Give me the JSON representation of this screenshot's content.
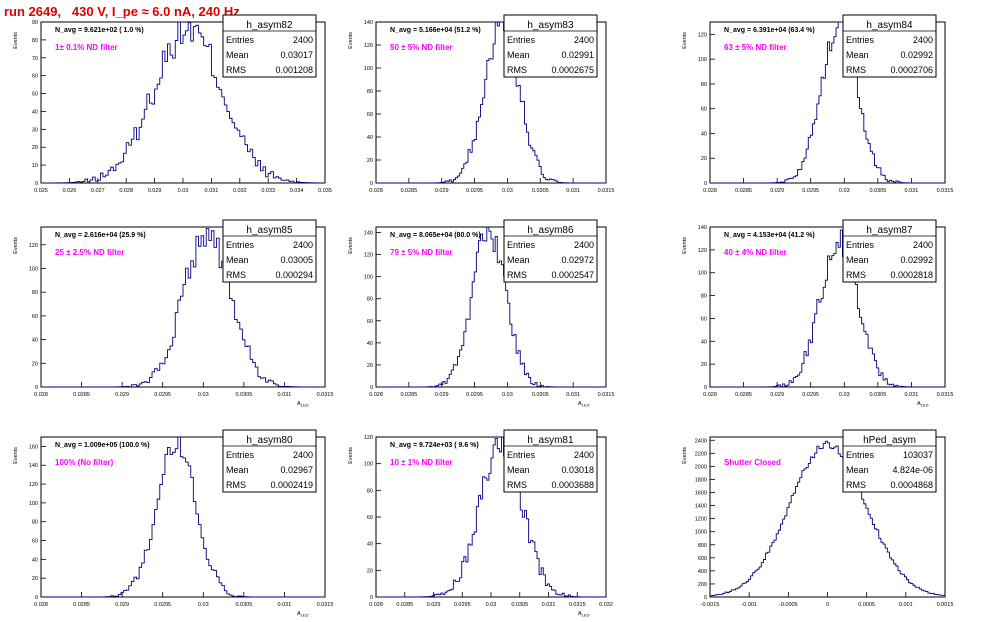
{
  "header": {
    "title": "run 2649,   430 V, I_pe ≈ 6.0 nA, 240 Hz"
  },
  "colors": {
    "hist": "#000080",
    "annot": "#ff00ff",
    "title": "#e00000",
    "frame": "#000000"
  },
  "chart_data": [
    {
      "type": "histogram",
      "name": "h_asym82",
      "stats": {
        "Entries": "2400",
        "Mean": "0.03017",
        "RMS": "0.001208"
      },
      "navg": "N_avg = 9.621e+02 ( 1.0 %)",
      "filter": "1± 0.1% ND filter",
      "xlim": [
        0.025,
        0.035
      ],
      "ylim": [
        0,
        90
      ],
      "ylabel": "Events",
      "xlabel": "",
      "xticks": [
        "0.025",
        "0.026",
        "0.027",
        "0.028",
        "0.029",
        "0.03",
        "0.031",
        "0.032",
        "0.033",
        "0.034",
        "0.035"
      ],
      "xtick_values": [
        0.025,
        0.026,
        0.027,
        0.028,
        0.029,
        0.03,
        0.031,
        0.032,
        0.033,
        0.034,
        0.035
      ],
      "yticks": [
        0,
        10,
        20,
        30,
        40,
        50,
        60,
        70,
        80,
        90
      ],
      "mean": 0.03017,
      "sigma": 0.001208,
      "peak": 86,
      "bins": 110
    },
    {
      "type": "histogram",
      "name": "h_asym83",
      "stats": {
        "Entries": "2400",
        "Mean": "0.02991",
        "RMS": "0.0002675"
      },
      "navg": "N_avg = 5.166e+04 (51.2 %)",
      "filter": "50 ± 5% ND filter",
      "xlim": [
        0.028,
        0.0315
      ],
      "ylim": [
        0,
        140
      ],
      "ylabel": "Events",
      "xlabel": "",
      "xticks": [
        "0.028",
        "0.0285",
        "0.029",
        "0.0295",
        "0.03",
        "0.0305",
        "0.031",
        "0.0315"
      ],
      "xtick_values": [
        0.028,
        0.0285,
        0.029,
        0.0295,
        0.03,
        0.0305,
        0.031,
        0.0315
      ],
      "yticks": [
        0,
        20,
        40,
        60,
        80,
        100,
        120,
        140
      ],
      "mean": 0.02991,
      "sigma": 0.0002675,
      "peak": 136,
      "bins": 110
    },
    {
      "type": "histogram",
      "name": "h_asym84",
      "stats": {
        "Entries": "2400",
        "Mean": "0.02992",
        "RMS": "0.0002706"
      },
      "navg": "N_avg = 6.391e+04 (63.4 %)",
      "filter": "63 ± 5% ND filter",
      "xlim": [
        0.028,
        0.0315
      ],
      "ylim": [
        0,
        130
      ],
      "ylabel": "Events",
      "xlabel": "",
      "xticks": [
        "0.028",
        "0.0285",
        "0.029",
        "0.0295",
        "0.03",
        "0.0305",
        "0.031",
        "0.0315"
      ],
      "xtick_values": [
        0.028,
        0.0285,
        0.029,
        0.0295,
        0.03,
        0.0305,
        0.031,
        0.0315
      ],
      "yticks": [
        0,
        20,
        40,
        60,
        80,
        100,
        120
      ],
      "mean": 0.02992,
      "sigma": 0.0002706,
      "peak": 128,
      "bins": 110
    },
    {
      "type": "histogram",
      "name": "h_asym85",
      "stats": {
        "Entries": "2400",
        "Mean": "0.03005",
        "RMS": "0.000294"
      },
      "navg": "N_avg = 2.616e+04 (25.9 %)",
      "filter": "25 ± 2.5% ND filter",
      "xlim": [
        0.028,
        0.0315
      ],
      "ylim": [
        0,
        135
      ],
      "ylabel": "Events",
      "xlabel": "A_LED",
      "xticks": [
        "0.028",
        "0.0285",
        "0.029",
        "0.0295",
        "0.03",
        "0.0305",
        "0.031",
        "0.0315"
      ],
      "xtick_values": [
        0.028,
        0.0285,
        0.029,
        0.0295,
        0.03,
        0.0305,
        0.031,
        0.0315
      ],
      "yticks": [
        0,
        20,
        40,
        60,
        80,
        100,
        120
      ],
      "mean": 0.03005,
      "sigma": 0.000294,
      "peak": 130,
      "bins": 110
    },
    {
      "type": "histogram",
      "name": "h_asym86",
      "stats": {
        "Entries": "2400",
        "Mean": "0.02972",
        "RMS": "0.0002547"
      },
      "navg": "N_avg = 8.065e+04 (80.0 %)",
      "filter": "79 ± 5% ND filter",
      "xlim": [
        0.028,
        0.0315
      ],
      "ylim": [
        0,
        145
      ],
      "ylabel": "Events",
      "xlabel": "A_LED",
      "xticks": [
        "0.028",
        "0.0285",
        "0.029",
        "0.0295",
        "0.03",
        "0.0305",
        "0.031",
        "0.0315"
      ],
      "xtick_values": [
        0.028,
        0.0285,
        0.029,
        0.0295,
        0.03,
        0.0305,
        0.031,
        0.0315
      ],
      "yticks": [
        0,
        20,
        40,
        60,
        80,
        100,
        120,
        140
      ],
      "mean": 0.02972,
      "sigma": 0.0002547,
      "peak": 142,
      "bins": 110
    },
    {
      "type": "histogram",
      "name": "h_asym87",
      "stats": {
        "Entries": "2400",
        "Mean": "0.02992",
        "RMS": "0.0002818"
      },
      "navg": "N_avg = 4.153e+04 (41.2 %)",
      "filter": "40 ± 4% ND filter",
      "xlim": [
        0.028,
        0.0315
      ],
      "ylim": [
        0,
        140
      ],
      "ylabel": "Events",
      "xlabel": "A_LED",
      "xticks": [
        "0.028",
        "0.0285",
        "0.029",
        "0.0295",
        "0.03",
        "0.0305",
        "0.031",
        "0.0315"
      ],
      "xtick_values": [
        0.028,
        0.0285,
        0.029,
        0.0295,
        0.03,
        0.0305,
        0.031,
        0.0315
      ],
      "yticks": [
        0,
        20,
        40,
        60,
        80,
        100,
        120,
        140
      ],
      "mean": 0.02992,
      "sigma": 0.0002818,
      "peak": 130,
      "bins": 110
    },
    {
      "type": "histogram",
      "name": "h_asym80",
      "stats": {
        "Entries": "2400",
        "Mean": "0.02967",
        "RMS": "0.0002419"
      },
      "navg": "N_avg = 1.009e+05 (100.0 %)",
      "filter": "100% (No filter)",
      "xlim": [
        0.028,
        0.0315
      ],
      "ylim": [
        0,
        170
      ],
      "ylabel": "Events",
      "xlabel": "A_LED",
      "xticks": [
        "0.028",
        "0.0285",
        "0.029",
        "0.0295",
        "0.03",
        "0.0305",
        "0.031",
        "0.0315"
      ],
      "xtick_values": [
        0.028,
        0.0285,
        0.029,
        0.0295,
        0.03,
        0.0305,
        0.031,
        0.0315
      ],
      "yticks": [
        0,
        20,
        40,
        60,
        80,
        100,
        120,
        140,
        160
      ],
      "mean": 0.02967,
      "sigma": 0.0002419,
      "peak": 165,
      "bins": 110
    },
    {
      "type": "histogram",
      "name": "h_asym81",
      "stats": {
        "Entries": "2400",
        "Mean": "0.03018",
        "RMS": "0.0003688"
      },
      "navg": "N_avg = 9.724e+03 ( 9.6 %)",
      "filter": "10 ± 1% ND filter",
      "xlim": [
        0.028,
        0.032
      ],
      "ylim": [
        0,
        120
      ],
      "ylabel": "Events",
      "xlabel": "A_LED",
      "xticks": [
        "0.028",
        "0.0285",
        "0.029",
        "0.0295",
        "0.03",
        "0.0305",
        "0.031",
        "0.0315",
        "0.032"
      ],
      "xtick_values": [
        0.028,
        0.0285,
        0.029,
        0.0295,
        0.03,
        0.0305,
        0.031,
        0.0315,
        0.032
      ],
      "yticks": [
        0,
        20,
        40,
        60,
        80,
        100,
        120
      ],
      "mean": 0.03018,
      "sigma": 0.0003688,
      "peak": 115,
      "bins": 110
    },
    {
      "type": "histogram",
      "name": "hPed_asym",
      "stats": {
        "Entries": "103037",
        "Mean": "4.824e-06",
        "RMS": "0.0004868"
      },
      "navg": "",
      "filter": "Shutter Closed",
      "xlim": [
        -0.0015,
        0.0015
      ],
      "ylim": [
        0,
        2450
      ],
      "ylabel": "Events",
      "xlabel": "",
      "xticks": [
        "-0.0015",
        "-0.001",
        "-0.0005",
        "0",
        "0.0005",
        "0.001",
        "0.0015"
      ],
      "xtick_values": [
        -0.0015,
        -0.001,
        -0.0005,
        0,
        0.0005,
        0.001,
        0.0015
      ],
      "yticks": [
        0,
        200,
        400,
        600,
        800,
        1000,
        1200,
        1400,
        1600,
        1800,
        2000,
        2200,
        2400
      ],
      "mean": 4.8e-06,
      "sigma": 0.0004868,
      "peak": 2340,
      "bins": 110
    }
  ]
}
